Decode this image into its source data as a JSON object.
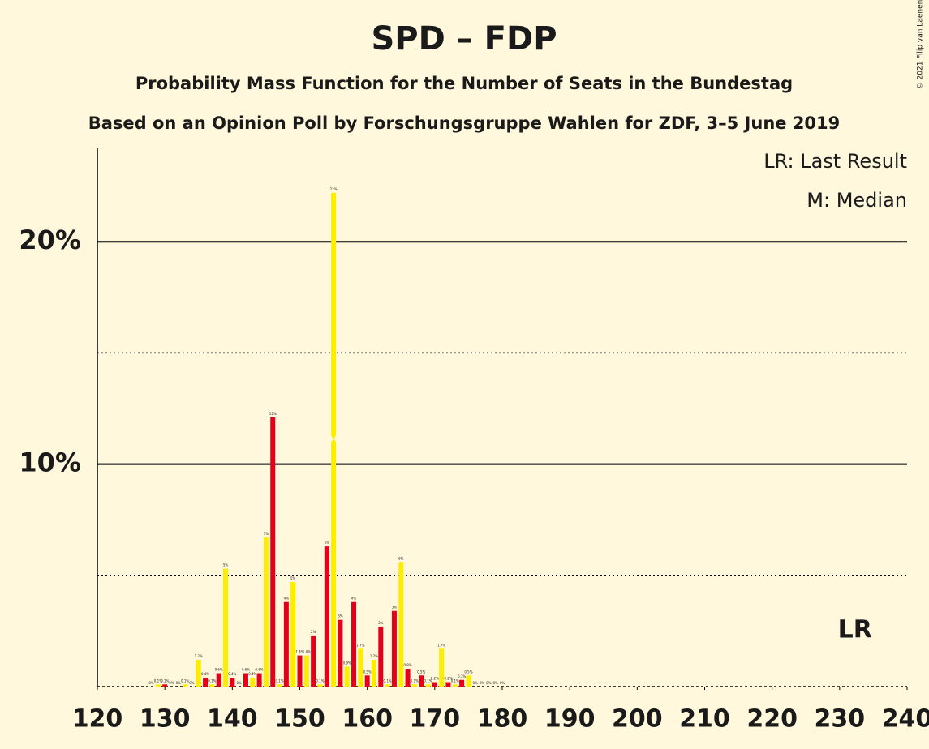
{
  "chart_data": {
    "type": "bar",
    "title": "SPD – FDP",
    "subtitle": "Probability Mass Function for the Number of Seats in the Bundestag",
    "subtitle2": "Based on an Opinion Poll by Forschungsgruppe Wahlen for ZDF, 3–5 June 2019",
    "legend": [
      "LR: Last Result",
      "M: Median"
    ],
    "copyright": "© 2021 Filip van Laenen",
    "annotation": {
      "text": "LR",
      "x": 233
    },
    "median": 155,
    "colors": [
      "#e2001a",
      "#ffed00"
    ],
    "x": [
      128,
      129,
      130,
      131,
      132,
      133,
      134,
      135,
      136,
      137,
      138,
      139,
      140,
      141,
      142,
      143,
      144,
      145,
      146,
      147,
      148,
      149,
      150,
      151,
      152,
      153,
      154,
      155,
      156,
      157,
      158,
      159,
      160,
      161,
      162,
      163,
      164,
      165,
      166,
      167,
      168,
      169,
      170,
      171,
      172,
      173,
      174,
      175,
      176,
      177,
      178,
      179,
      180
    ],
    "values": [
      0,
      0.1,
      0.1,
      0,
      0,
      0.1,
      0,
      1.2,
      0.4,
      0.1,
      0.6,
      5.3,
      0.4,
      0,
      0.6,
      0.4,
      0.6,
      6.7,
      12.1,
      0.1,
      3.8,
      4.7,
      1.4,
      1.4,
      2.3,
      0.1,
      6.3,
      22.2,
      3,
      0.9,
      3.8,
      1.7,
      0.5,
      1.2,
      2.7,
      0.1,
      3.4,
      5.6,
      0.8,
      0.1,
      0.5,
      0.1,
      0.2,
      1.7,
      0.2,
      0.1,
      0.3,
      0.5,
      0,
      0,
      0,
      0,
      0
    ],
    "value_labels": [
      "0%",
      "0.1%",
      "0.1%",
      "0%",
      "0%",
      "0.1%",
      "0%",
      "1.2%",
      "0.4%",
      "0.1%",
      "0.6%",
      "5%",
      "0.4%",
      "0%",
      "0.6%",
      "0.4%",
      "0.6%",
      "7%",
      "12%",
      "0.1%",
      "4%",
      "5%",
      "1.4%",
      "1.4%",
      "2%",
      "0.1%",
      "6%",
      "22%",
      "3%",
      "0.9%",
      "4%",
      "1.7%",
      "0.5%",
      "1.2%",
      "3%",
      "0.1%",
      "3%",
      "6%",
      "0.8%",
      "0.1%",
      "0.5%",
      "0.1%",
      "0.2%",
      "1.7%",
      "0.2%",
      "0.1%",
      "0.3%",
      "0.5%",
      "0%",
      "0%",
      "0%",
      "0%",
      "0%"
    ],
    "xlim": [
      120,
      240
    ],
    "xticks": [
      120,
      130,
      140,
      150,
      160,
      170,
      180,
      190,
      200,
      210,
      220,
      230,
      240
    ],
    "ylim": [
      0,
      24.2
    ],
    "yticks": [
      {
        "value": 10,
        "label": "10%"
      },
      {
        "value": 20,
        "label": "20%"
      }
    ],
    "minor_yticks": [
      5,
      15
    ],
    "grid": true
  }
}
